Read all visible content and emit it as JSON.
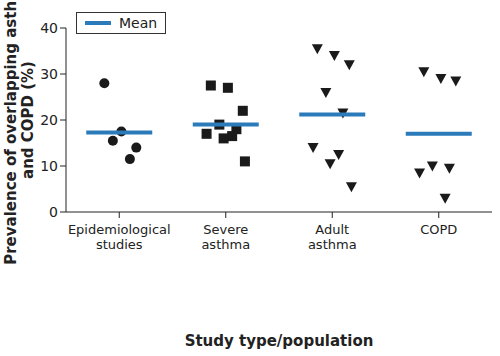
{
  "chart_data": {
    "type": "scatter",
    "x_label": "Study type/population",
    "y_label": "Prevalence of overlapping asthma and COPD (%)",
    "categories": [
      "Epidemiological studies",
      "Severe asthma",
      "Adult asthma",
      "COPD"
    ],
    "groups": [
      {
        "values": [
          28,
          17.5,
          14,
          15.5,
          11.5
        ],
        "marker": "circle"
      },
      {
        "values": [
          27.5,
          27,
          22,
          19,
          18,
          17,
          16.5,
          16,
          11
        ],
        "marker": "square"
      },
      {
        "values": [
          35.5,
          34,
          32,
          26,
          21.5,
          14,
          12.5,
          10.5,
          5.5
        ],
        "marker": "triangle-down"
      },
      {
        "values": [
          30.5,
          29,
          28.5,
          10,
          9.5,
          8.5,
          3
        ],
        "marker": "triangle-down"
      }
    ],
    "color": "#1a1a1a",
    "series": [
      {
        "name": "Mean",
        "color": "#2b7bba",
        "values": [
          17.3,
          19,
          21.2,
          17
        ],
        "marker": "dash"
      }
    ],
    "ylim": [
      0,
      40
    ],
    "yticks": [
      0,
      10,
      20,
      30,
      40
    ],
    "grid": false,
    "legend": "upper left"
  }
}
